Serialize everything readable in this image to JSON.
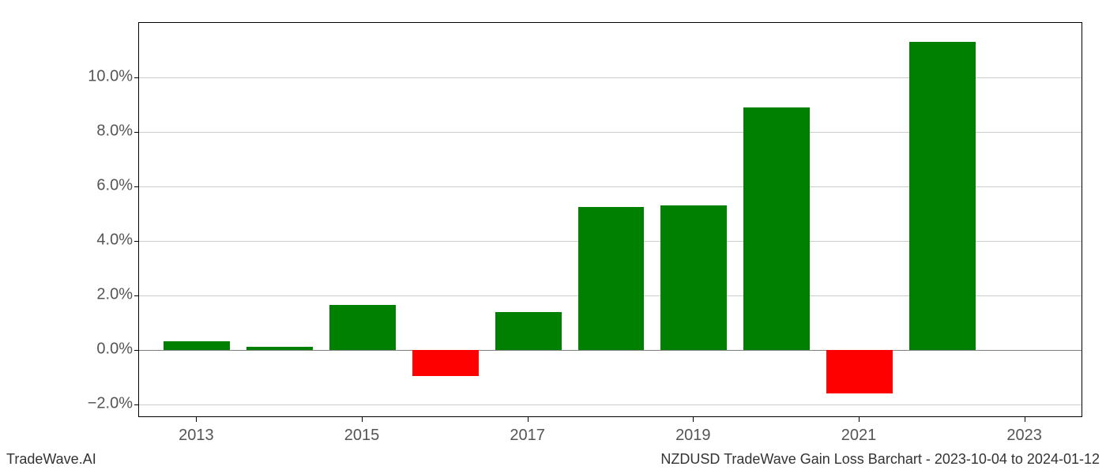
{
  "chart": {
    "type": "bar",
    "background_color": "#ffffff",
    "grid_color": "#cccccc",
    "zero_line_color": "#808080",
    "tick_label_color": "#555555",
    "tick_label_fontsize": 20,
    "footer_fontsize": 18,
    "positive_color": "#008000",
    "negative_color": "#ff0000",
    "ylim_min": -2.5,
    "ylim_max": 12.0,
    "yticks": [
      -2.0,
      0.0,
      2.0,
      4.0,
      6.0,
      8.0,
      10.0
    ],
    "ytick_labels": [
      "−2.0%",
      "0.0%",
      "2.0%",
      "4.0%",
      "6.0%",
      "8.0%",
      "10.0%"
    ],
    "xticks": [
      2013,
      2015,
      2017,
      2019,
      2021,
      2023
    ],
    "xtick_labels": [
      "2013",
      "2015",
      "2017",
      "2019",
      "2021",
      "2023"
    ],
    "x_range_min": 2012.3,
    "x_range_max": 2023.7,
    "bar_width": 0.8,
    "data": [
      {
        "year": 2013,
        "value": 0.3
      },
      {
        "year": 2014,
        "value": 0.12
      },
      {
        "year": 2015,
        "value": 1.65
      },
      {
        "year": 2016,
        "value": -0.95
      },
      {
        "year": 2017,
        "value": 1.4
      },
      {
        "year": 2018,
        "value": 5.25
      },
      {
        "year": 2019,
        "value": 5.3
      },
      {
        "year": 2020,
        "value": 8.9
      },
      {
        "year": 2021,
        "value": -1.6
      },
      {
        "year": 2022,
        "value": 11.3
      }
    ]
  },
  "footer_left": "TradeWave.AI",
  "footer_right": "NZDUSD TradeWave Gain Loss Barchart - 2023-10-04 to 2024-01-12"
}
